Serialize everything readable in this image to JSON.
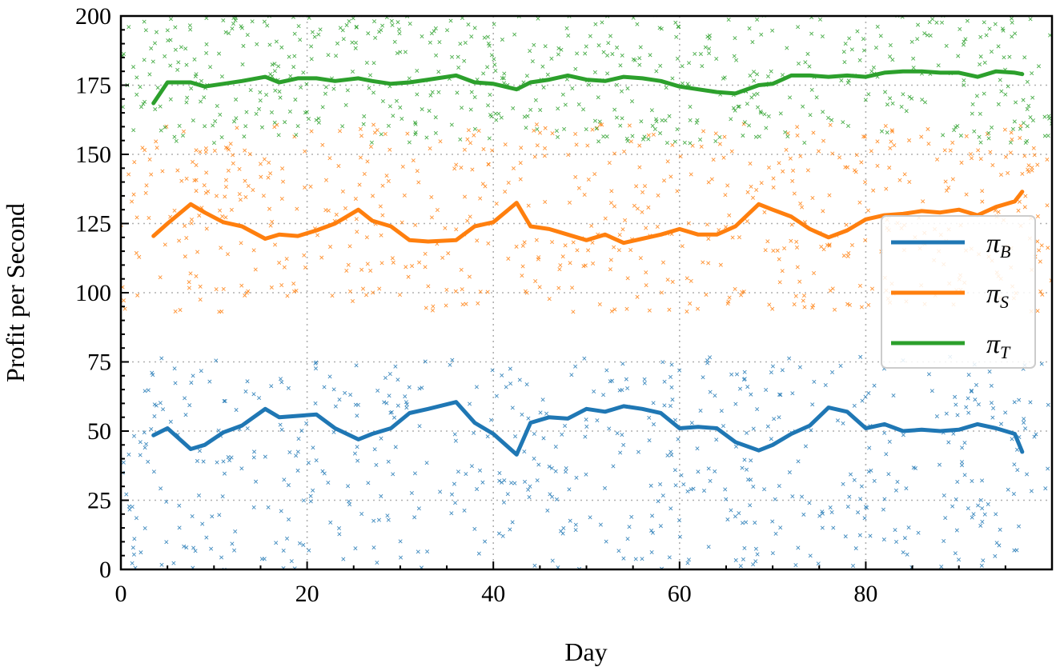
{
  "chart_data": {
    "type": "line",
    "xlabel": "Day",
    "ylabel": "Profit per Second",
    "xlim": [
      0,
      100
    ],
    "ylim": [
      0,
      200
    ],
    "xticks": [
      0,
      20,
      40,
      60,
      80
    ],
    "yticks": [
      0,
      25,
      50,
      75,
      100,
      125,
      150,
      175,
      200
    ],
    "grid": true,
    "legend_position": "right",
    "series": [
      {
        "name": "π_B",
        "label_main": "π",
        "label_sub": "B",
        "color": "#1f77b4",
        "scatter_mean": 37,
        "scatter_spread": 40,
        "x": [
          3.5,
          5,
          7.5,
          9,
          11,
          13,
          15.5,
          17,
          19,
          21,
          23,
          25.5,
          27,
          29,
          31,
          33,
          36,
          38,
          40,
          42.5,
          44,
          46,
          48,
          50,
          52,
          54,
          56,
          58,
          60,
          62,
          64,
          66,
          68.5,
          70,
          72,
          74,
          76,
          78,
          80,
          82,
          84,
          86,
          88,
          90,
          92,
          94,
          96,
          96.8
        ],
        "y": [
          48.5,
          51,
          43.5,
          45,
          49.5,
          52,
          58,
          55,
          55.5,
          56,
          51,
          47,
          49,
          51,
          56.5,
          58,
          60.5,
          53,
          49,
          41.5,
          53,
          55,
          54.5,
          58,
          57,
          59,
          58,
          56.5,
          51,
          51.5,
          51,
          46,
          43,
          45,
          49,
          52,
          58.5,
          57,
          51,
          52.5,
          50,
          50.5,
          50,
          50.5,
          52.5,
          51,
          49,
          42.5
        ]
      },
      {
        "name": "π_S",
        "label_main": "π",
        "label_sub": "S",
        "color": "#ff7f0e",
        "scatter_mean": 127,
        "scatter_spread": 34,
        "x": [
          3.5,
          5,
          7.5,
          9,
          11,
          13,
          15.5,
          17,
          19,
          21,
          23,
          25.5,
          27,
          29,
          31,
          33,
          36,
          38,
          40,
          42.5,
          44,
          46,
          48,
          50,
          52,
          54,
          56,
          58,
          60,
          62,
          64,
          66,
          68.5,
          70,
          72,
          74,
          76,
          78,
          80,
          82,
          84,
          86,
          88,
          90,
          92,
          94,
          96,
          96.8
        ],
        "y": [
          120.5,
          125,
          132,
          129,
          125.5,
          124,
          119.5,
          121,
          120.5,
          122.5,
          125,
          130,
          126,
          124,
          119,
          118.5,
          119,
          124,
          125.5,
          132.5,
          124,
          123,
          121,
          119,
          121,
          118,
          119.5,
          121,
          123,
          121,
          121,
          124,
          132,
          130,
          127.5,
          123,
          120,
          122.5,
          126.5,
          128,
          128.5,
          129.5,
          129,
          130,
          128,
          131,
          133,
          136.5
        ]
      },
      {
        "name": "π_T",
        "label_main": "π",
        "label_sub": "T",
        "color": "#2ca02c",
        "scatter_mean": 178,
        "scatter_spread": 24,
        "x": [
          3.5,
          5,
          7.5,
          9,
          11,
          13,
          15.5,
          17,
          19,
          21,
          23,
          25.5,
          27,
          29,
          31,
          33,
          36,
          38,
          40,
          42.5,
          44,
          46,
          48,
          50,
          52,
          54,
          56,
          58,
          60,
          62,
          64,
          66,
          68.5,
          70,
          72,
          74,
          76,
          78,
          80,
          82,
          84,
          86,
          88,
          90,
          92,
          94,
          96,
          96.8
        ],
        "y": [
          168.5,
          176,
          176,
          174.5,
          175.5,
          176.5,
          178,
          176,
          177.5,
          177.5,
          176.5,
          177.5,
          176.5,
          175.5,
          176,
          177,
          178.5,
          176,
          175.5,
          173.5,
          176,
          177,
          178.5,
          177,
          176.5,
          178,
          177.5,
          176.5,
          174.5,
          173.5,
          172.5,
          172,
          175,
          175.5,
          178.5,
          178.5,
          178,
          178.5,
          178,
          179.5,
          180,
          180,
          179.5,
          179.5,
          178,
          180,
          179.5,
          179
        ]
      }
    ]
  }
}
